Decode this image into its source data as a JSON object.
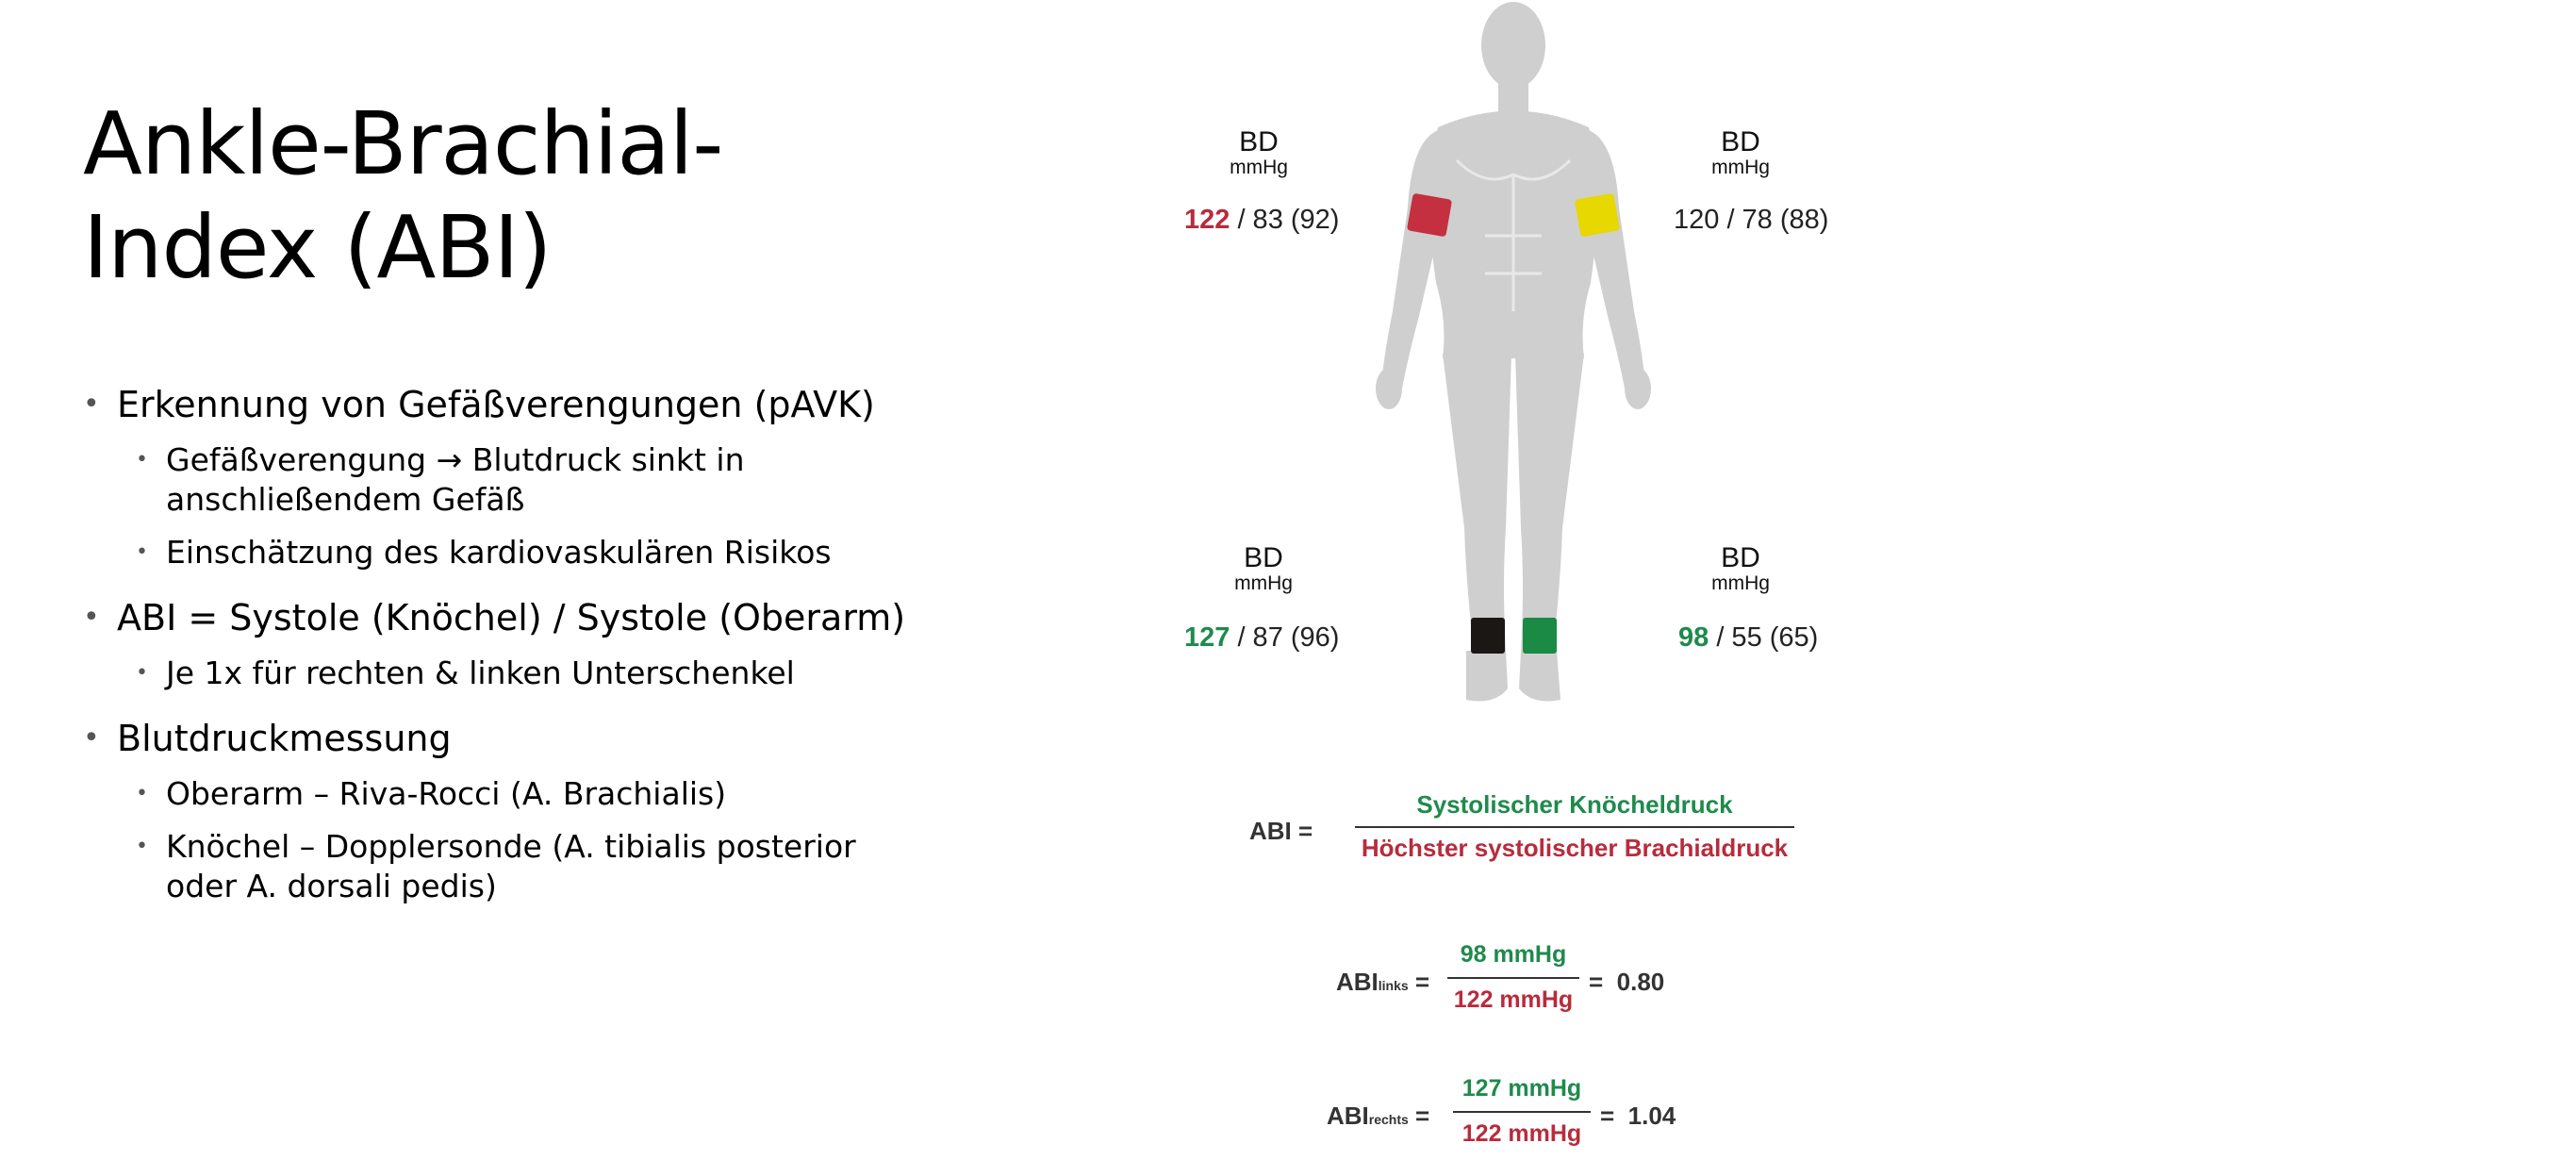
{
  "title": {
    "line1": "Ankle-Brachial-",
    "line2": "Index (ABI)"
  },
  "bullets": [
    {
      "text": "Erkennung von Gefäßverengungen (pAVK)",
      "sub": [
        {
          "text_a": "Gefäßverengung ",
          "arrow": "→",
          "text_b": " Blutdruck sinkt in anschließendem Gefäß"
        },
        {
          "text": "Einschätzung des kardiovaskulären Risikos"
        }
      ]
    },
    {
      "text": "ABI = Systole (Knöchel) / Systole (Oberarm)",
      "sub": [
        {
          "text": "Je 1x für rechten & linken Unterschenkel"
        }
      ]
    },
    {
      "text": "Blutdruckmessung",
      "sub": [
        {
          "text": "Oberarm – Riva-Rocci (A. Brachialis)"
        },
        {
          "text": "Knöchel – Dopplersonde (A. tibialis posterior oder A. dorsali pedis)"
        }
      ]
    }
  ],
  "figure": {
    "bd_label": "BD",
    "unit": "mmHg",
    "right_arm": {
      "sys": "122",
      "rest": " / 83 (92)",
      "cuff_color": "#c4303f"
    },
    "left_arm": {
      "value": "120 / 78 (88)",
      "cuff_color": "#e6d800"
    },
    "right_ankle": {
      "sys": "127",
      "rest": " / 87 (96)",
      "cuff_color": "#1b1715"
    },
    "left_ankle": {
      "sys": "98",
      "rest": " / 55 (65)",
      "cuff_color": "#1a8a44"
    },
    "formula": {
      "lhs": "ABI =",
      "numerator": "Systolischer Knöcheldruck",
      "denominator": "Höchster systolischer Brachialdruck"
    },
    "left_calc": {
      "lhs": "ABI",
      "sub": "links",
      "eq": "=",
      "num": "98 mmHg",
      "den": "122 mmHg",
      "result": "=  0.80"
    },
    "right_calc": {
      "lhs": "ABI",
      "sub": "rechts",
      "eq": "=",
      "num": "127 mmHg",
      "den": "122 mmHg",
      "result": "=  1.04"
    }
  },
  "colors": {
    "green": "#1f8a4c",
    "red": "#b72c3c",
    "body": "#cfcfcf"
  }
}
